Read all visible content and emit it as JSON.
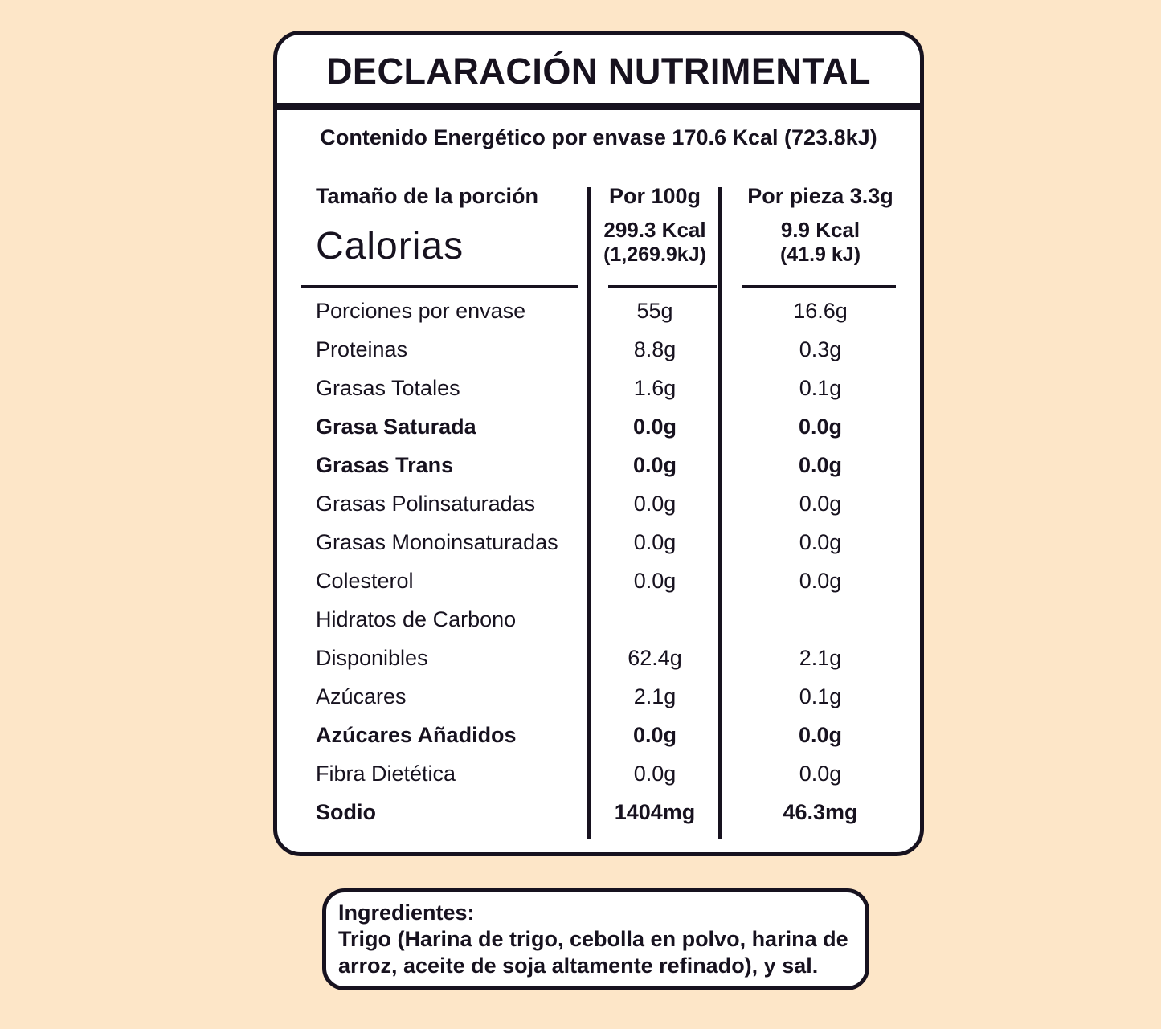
{
  "colors": {
    "background": "#fde6c8",
    "ink": "#17121f",
    "card_background": "#ffffff"
  },
  "label": {
    "title": "DECLARACIÓN NUTRIMENTAL",
    "energy_line": "Contenido Energético por envase 170.6 Kcal (723.8kJ)"
  },
  "table": {
    "header": {
      "serving_label": "Tamaño de la porción",
      "col_per_100g": "Por 100g",
      "col_per_piece": "Por pieza 3.3g"
    },
    "calories": {
      "label": "Calorias",
      "per100_kcal": "299.3 Kcal",
      "per100_kj": "(1,269.9kJ)",
      "piece_kcal": "9.9 Kcal",
      "piece_kj": "(41.9 kJ)"
    },
    "rows": [
      {
        "label": "Porciones por envase",
        "per100": "55g",
        "piece": "16.6g"
      },
      {
        "label": "Proteinas",
        "per100": "8.8g",
        "piece": "0.3g"
      },
      {
        "label": "Grasas Totales",
        "per100": "1.6g",
        "piece": "0.1g"
      },
      {
        "label": "Grasa Saturada",
        "per100": "0.0g",
        "piece": "0.0g"
      },
      {
        "label": "Grasas Trans",
        "per100": "0.0g",
        "piece": "0.0g"
      },
      {
        "label": "Grasas Polinsaturadas",
        "per100": "0.0g",
        "piece": "0.0g"
      },
      {
        "label": "Grasas Monoinsaturadas",
        "per100": "0.0g",
        "piece": "0.0g"
      },
      {
        "label": "Colesterol",
        "per100": "0.0g",
        "piece": "0.0g"
      },
      {
        "label": "Hidratos de Carbono",
        "per100": "",
        "piece": ""
      },
      {
        "label": "Disponibles",
        "per100": "62.4g",
        "piece": "2.1g"
      },
      {
        "label": "Azúcares",
        "per100": "2.1g",
        "piece": "0.1g"
      },
      {
        "label": "Azúcares Añadidos",
        "per100": "0.0g",
        "piece": "0.0g"
      },
      {
        "label": "Fibra Dietética",
        "per100": "0.0g",
        "piece": "0.0g"
      },
      {
        "label": "Sodio",
        "per100": "1404mg",
        "piece": "46.3mg"
      }
    ]
  },
  "ingredients": {
    "heading": "Ingredientes:",
    "line1": "Trigo (Harina de trigo, cebolla en polvo, harina de",
    "line2": "arroz, aceite de soja altamente refinado), y sal."
  }
}
